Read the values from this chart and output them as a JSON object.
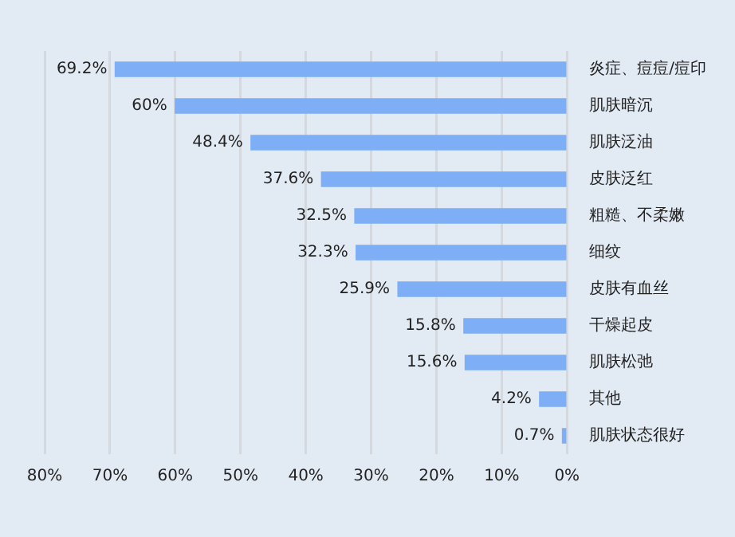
{
  "chart_data": {
    "type": "bar",
    "orientation": "horizontal",
    "categories": [
      "炎症、痘痘/痘印",
      "肌肤暗沉",
      "肌肤泛油",
      "皮肤泛红",
      "粗糙、不柔嫩",
      "细纹",
      "皮肤有血丝",
      "干燥起皮",
      "肌肤松弛",
      "其他",
      "肌肤状态很好"
    ],
    "values": [
      69.2,
      60,
      48.4,
      37.6,
      32.5,
      32.3,
      25.9,
      15.8,
      15.6,
      4.2,
      0.7
    ],
    "value_labels": [
      "69.2%",
      "60%",
      "48.4%",
      "37.6%",
      "32.5%",
      "32.3%",
      "25.9%",
      "15.8%",
      "15.6%",
      "4.2%",
      "0.7%"
    ],
    "color": "#7eaef6",
    "xlim": [
      80,
      0
    ],
    "xticks": [
      {
        "value": 80,
        "label": "80%"
      },
      {
        "value": 70,
        "label": "70%"
      },
      {
        "value": 60,
        "label": "60%"
      },
      {
        "value": 50,
        "label": "50%"
      },
      {
        "value": 40,
        "label": "40%"
      },
      {
        "value": 30,
        "label": "30%"
      },
      {
        "value": 20,
        "label": "20%"
      },
      {
        "value": 10,
        "label": "10%"
      },
      {
        "value": 0,
        "label": "0%"
      }
    ],
    "grid": "x"
  }
}
